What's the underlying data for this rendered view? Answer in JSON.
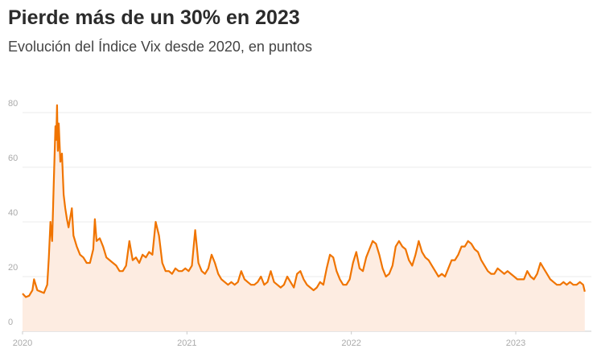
{
  "chart_data": {
    "type": "line",
    "title": "Pierde más de un 30% en 2023",
    "subtitle": "Evolución del Índice Vix desde 2020, en puntos",
    "color": "#f07400",
    "fill": "#fdece1",
    "grid": true,
    "xlim": [
      2020,
      2023.46
    ],
    "xticks": [
      2020,
      2021,
      2022,
      2023
    ],
    "ylim": [
      0,
      80
    ],
    "yticks": [
      0,
      20,
      40,
      60,
      80
    ],
    "x": [
      2020.0,
      2020.02,
      2020.04,
      2020.06,
      2020.07,
      2020.09,
      2020.11,
      2020.13,
      2020.15,
      2020.16,
      2020.17,
      2020.18,
      2020.19,
      2020.2,
      2020.205,
      2020.21,
      2020.215,
      2020.22,
      2020.23,
      2020.24,
      2020.25,
      2020.26,
      2020.27,
      2020.28,
      2020.3,
      2020.31,
      2020.33,
      2020.35,
      2020.37,
      2020.39,
      2020.41,
      2020.43,
      2020.44,
      2020.45,
      2020.47,
      2020.49,
      2020.51,
      2020.53,
      2020.55,
      2020.57,
      2020.59,
      2020.61,
      2020.63,
      2020.65,
      2020.67,
      2020.69,
      2020.71,
      2020.73,
      2020.75,
      2020.77,
      2020.79,
      2020.81,
      2020.83,
      2020.85,
      2020.87,
      2020.89,
      2020.91,
      2020.93,
      2020.95,
      2020.97,
      2020.99,
      2021.01,
      2021.03,
      2021.05,
      2021.07,
      2021.09,
      2021.11,
      2021.13,
      2021.15,
      2021.17,
      2021.19,
      2021.21,
      2021.23,
      2021.25,
      2021.27,
      2021.29,
      2021.31,
      2021.33,
      2021.35,
      2021.37,
      2021.39,
      2021.41,
      2021.43,
      2021.45,
      2021.47,
      2021.49,
      2021.51,
      2021.53,
      2021.55,
      2021.57,
      2021.59,
      2021.61,
      2021.63,
      2021.65,
      2021.67,
      2021.69,
      2021.71,
      2021.73,
      2021.75,
      2021.77,
      2021.79,
      2021.81,
      2021.83,
      2021.85,
      2021.87,
      2021.89,
      2021.91,
      2021.93,
      2021.95,
      2021.97,
      2021.99,
      2022.01,
      2022.03,
      2022.05,
      2022.07,
      2022.09,
      2022.11,
      2022.13,
      2022.15,
      2022.17,
      2022.19,
      2022.21,
      2022.23,
      2022.25,
      2022.27,
      2022.29,
      2022.31,
      2022.33,
      2022.35,
      2022.37,
      2022.39,
      2022.41,
      2022.43,
      2022.45,
      2022.47,
      2022.49,
      2022.51,
      2022.53,
      2022.55,
      2022.57,
      2022.59,
      2022.61,
      2022.63,
      2022.65,
      2022.67,
      2022.69,
      2022.71,
      2022.73,
      2022.75,
      2022.77,
      2022.79,
      2022.81,
      2022.83,
      2022.85,
      2022.87,
      2022.89,
      2022.91,
      2022.93,
      2022.95,
      2022.97,
      2022.99,
      2023.01,
      2023.03,
      2023.05,
      2023.07,
      2023.09,
      2023.11,
      2023.13,
      2023.15,
      2023.17,
      2023.19,
      2023.21,
      2023.23,
      2023.25,
      2023.27,
      2023.29,
      2023.31,
      2023.33,
      2023.35,
      2023.37,
      2023.39,
      2023.41,
      2023.42
    ],
    "values": [
      13.8,
      12.5,
      13,
      15,
      19,
      15,
      14.5,
      14,
      17,
      27,
      40,
      33,
      54,
      75,
      70,
      82.7,
      66,
      76,
      62,
      65,
      50,
      45,
      41,
      38,
      45,
      35,
      31,
      28,
      27,
      25,
      25,
      30,
      41,
      33,
      34,
      31,
      27,
      26,
      25,
      24,
      22,
      22,
      24,
      33,
      26,
      27,
      25,
      28,
      27,
      29,
      28,
      40,
      35,
      25,
      22,
      22,
      21,
      23,
      22,
      22,
      23,
      22,
      24,
      37,
      25,
      22,
      21,
      23,
      28,
      25,
      21,
      19,
      18,
      17,
      18,
      17,
      18,
      22,
      19,
      18,
      17,
      17,
      18,
      20,
      17,
      18,
      22,
      18,
      17,
      16,
      17,
      20,
      18,
      16,
      21,
      22,
      19,
      17,
      16,
      15,
      16,
      18,
      17,
      23,
      28,
      27,
      22,
      19,
      17,
      17,
      19,
      25,
      29,
      23,
      22,
      27,
      30,
      33,
      32,
      28,
      23,
      20,
      21,
      24,
      31,
      33,
      31,
      30,
      26,
      24,
      28,
      33,
      29,
      27,
      26,
      24,
      22,
      20,
      21,
      20,
      23,
      26,
      26,
      28,
      31,
      31,
      33,
      32,
      30,
      29,
      26,
      24,
      22,
      21,
      21,
      23,
      22,
      21,
      22,
      21,
      20,
      19,
      19,
      19,
      22,
      20,
      19,
      21,
      25,
      23,
      21,
      19,
      18,
      17,
      17,
      18,
      17,
      18,
      17,
      17,
      18,
      17,
      14.5
    ]
  }
}
